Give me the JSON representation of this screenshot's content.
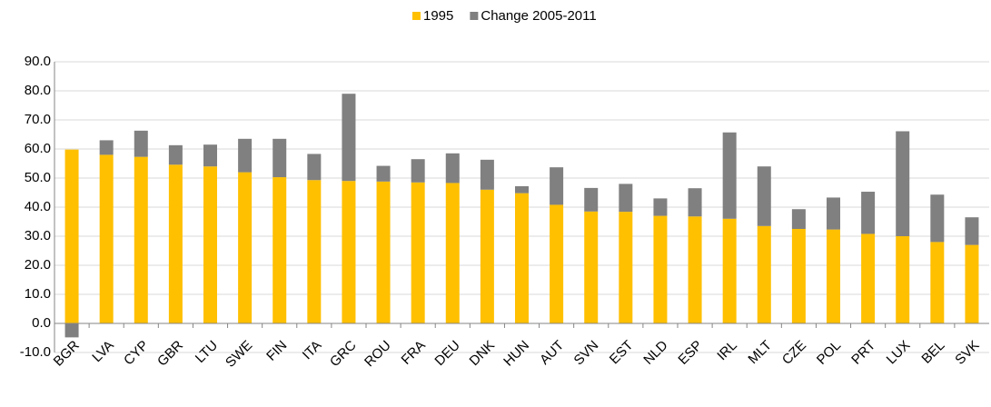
{
  "chart_data": {
    "type": "stacked_bar",
    "categories": [
      "BGR",
      "LVA",
      "CYP",
      "GBR",
      "LTU",
      "SWE",
      "FIN",
      "ITA",
      "GRC",
      "ROU",
      "FRA",
      "DEU",
      "DNK",
      "HUN",
      "AUT",
      "SVN",
      "EST",
      "NLD",
      "ESP",
      "IRL",
      "MLT",
      "CZE",
      "POL",
      "PRT",
      "LUX",
      "BEL",
      "SVK"
    ],
    "series": [
      {
        "name": "1995",
        "color": "#ffc000",
        "values": [
          59.8,
          58,
          57.3,
          54.6,
          54,
          52,
          50.3,
          49.3,
          49,
          48.8,
          48.5,
          48.3,
          46,
          44.8,
          40.8,
          38.5,
          38.4,
          37,
          36.8,
          36,
          33.5,
          32.5,
          32.3,
          30.8,
          30,
          28,
          27
        ]
      },
      {
        "name": "Change 2005-2011",
        "color": "#808080",
        "values": [
          -4.8,
          5,
          9,
          6.7,
          7.5,
          11.5,
          13.2,
          9,
          30,
          5.4,
          8,
          10.2,
          10.3,
          2.4,
          12.9,
          8.1,
          9.6,
          6,
          9.7,
          29.7,
          20.5,
          6.8,
          11,
          14.5,
          36.1,
          16.3,
          9.5
        ]
      }
    ],
    "ylim": [
      -10,
      90
    ],
    "yticks": [
      {
        "value": -10,
        "label": "-10.0"
      },
      {
        "value": 0,
        "label": "0.0"
      },
      {
        "value": 10,
        "label": "10.0"
      },
      {
        "value": 20,
        "label": "20.0"
      },
      {
        "value": 30,
        "label": "30.0"
      },
      {
        "value": 40,
        "label": "40.0"
      },
      {
        "value": 50,
        "label": "50.0"
      },
      {
        "value": 60,
        "label": "60.0"
      },
      {
        "value": 70,
        "label": "70.0"
      },
      {
        "value": 80,
        "label": "80.0"
      },
      {
        "value": 90,
        "label": "90.0"
      }
    ],
    "grid": true,
    "legend": "top"
  }
}
